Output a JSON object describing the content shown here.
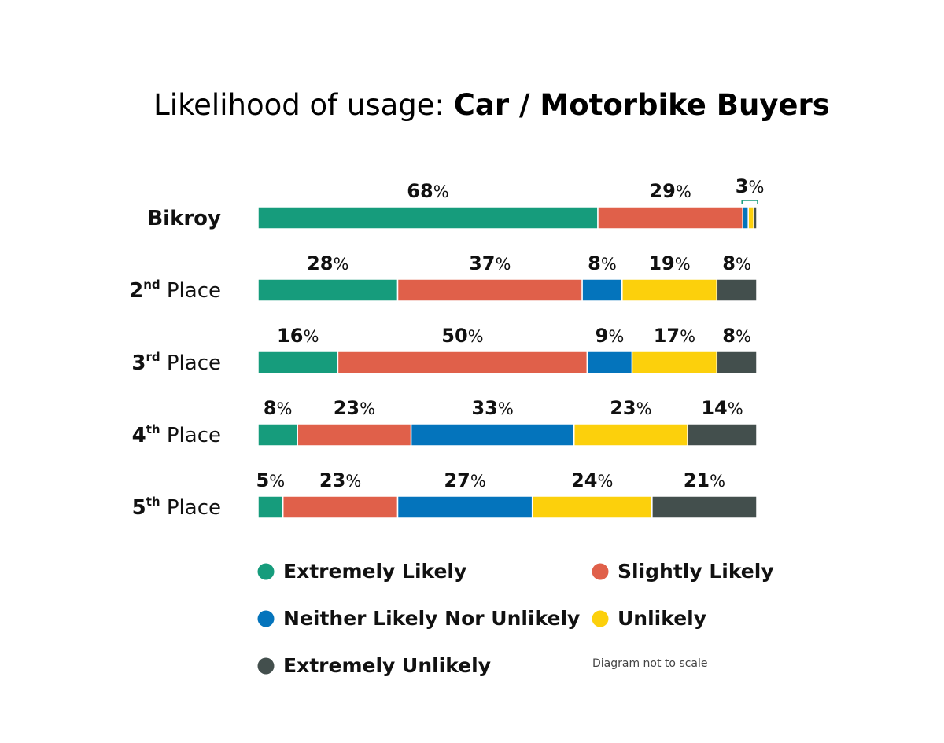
{
  "chart_data": {
    "type": "bar",
    "orientation": "horizontal",
    "stacked": true,
    "title_prefix": "Likelihood of usage: ",
    "title_main": "Car / Motorbike Buyers",
    "categories": [
      {
        "main": "Bikroy",
        "sup": "",
        "rest": ""
      },
      {
        "main": "2",
        "sup": "nd",
        "rest": " Place"
      },
      {
        "main": "3",
        "sup": "rd",
        "rest": " Place"
      },
      {
        "main": "4",
        "sup": "th",
        "rest": " Place"
      },
      {
        "main": "5",
        "sup": "th",
        "rest": " Place"
      }
    ],
    "series": [
      {
        "name": "Extremely Likely",
        "color": "#169c7c",
        "values": [
          68,
          28,
          16,
          8,
          5
        ]
      },
      {
        "name": "Slightly Likely",
        "color": "#e0604a",
        "values": [
          29,
          37,
          50,
          23,
          23
        ]
      },
      {
        "name": "Neither Likely Nor Unlikely",
        "color": "#0474bc",
        "values": [
          1,
          8,
          9,
          33,
          27
        ]
      },
      {
        "name": "Unlikely",
        "color": "#fcd00c",
        "values": [
          1,
          19,
          17,
          23,
          24
        ]
      },
      {
        "name": "Extremely Unlikely",
        "color": "#434f4d",
        "values": [
          1,
          8,
          8,
          14,
          21
        ]
      }
    ],
    "labels": [
      [
        "68",
        "29",
        "3",
        "",
        ""
      ],
      [
        "28",
        "37",
        "8",
        "19",
        "8"
      ],
      [
        "16",
        "50",
        "9",
        "17",
        "8"
      ],
      [
        "8",
        "23",
        "33",
        "23",
        "14"
      ],
      [
        "5",
        "23",
        "27",
        "24",
        "21"
      ]
    ],
    "percent_symbol": "%",
    "grouped_label_note": "3% covers the last three segments of the Bikroy bar",
    "legend_placement": "bottom",
    "grid": false,
    "xlim": [
      0,
      100
    ]
  },
  "note": "Diagram not to scale"
}
